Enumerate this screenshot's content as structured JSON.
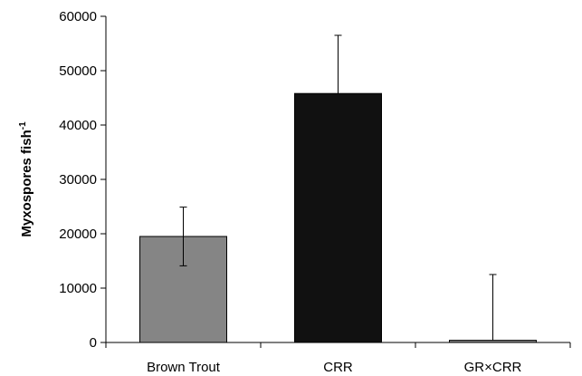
{
  "chart_data": {
    "type": "bar",
    "categories": [
      "Brown Trout",
      "CRR",
      "GR×CRR"
    ],
    "values": [
      19500,
      45800,
      400
    ],
    "error_plus": [
      5400,
      10700,
      12100
    ],
    "error_minus": [
      5400,
      0,
      0
    ],
    "bar_colors": [
      "#858585",
      "#111111",
      "#858585"
    ],
    "ylabel": "Myxospores fish",
    "ylabel_superscript": "-1",
    "xlabel": "",
    "ylim": [
      0,
      60000
    ],
    "yticks": [
      0,
      10000,
      20000,
      30000,
      40000,
      50000,
      60000
    ],
    "grid": false,
    "legend": "none"
  }
}
